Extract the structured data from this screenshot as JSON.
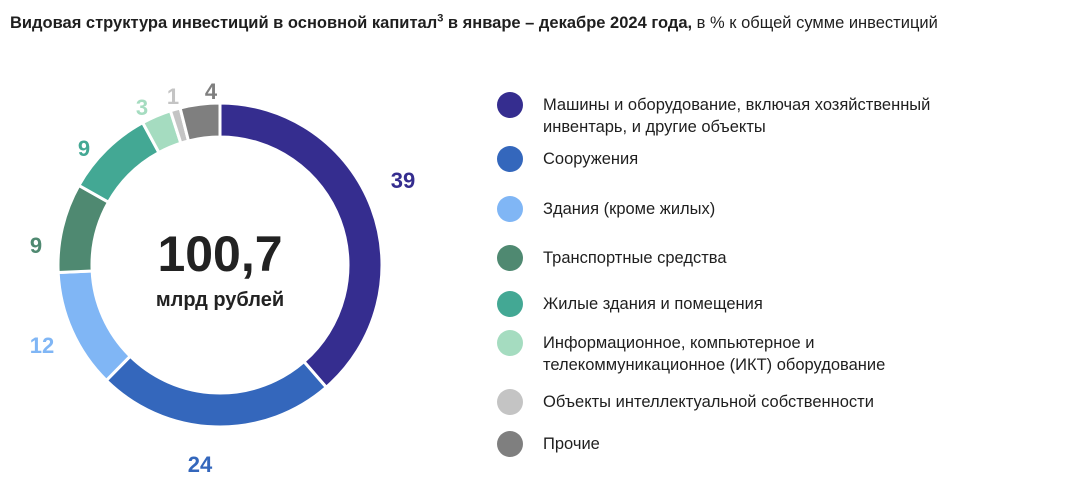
{
  "title": {
    "bold_part": "Видовая структура инвестиций в основной капитал",
    "superscript": "3",
    "bold_part_2": " в январе – декабре 2024 года,",
    "normal_part": " в % к общей сумме инвестиций"
  },
  "center": {
    "value": "100,7",
    "unit": "млрд рублей"
  },
  "chart_data": {
    "type": "pie",
    "title": "Видовая структура инвестиций в основной капитал в январе – декабре 2024 года, в % к общей сумме инвестиций",
    "total_label": "100,7 млрд рублей",
    "categories": [
      "Машины и оборудование, включая хозяйственный инвентарь, и другие объекты",
      "Сооружения",
      "Здания (кроме жилых)",
      "Транспортные средства",
      "Жилые здания и помещения",
      "Информационное, компьютерное и телекоммуникационное (ИКТ) оборудование",
      "Объекты интеллектуальной собственности",
      "Прочие"
    ],
    "values": [
      39,
      24,
      12,
      9,
      9,
      3,
      1,
      4
    ],
    "colors": [
      "#352d8f",
      "#3467bc",
      "#80b6f5",
      "#4f8971",
      "#43a894",
      "#a5dcc0",
      "#c4c4c4",
      "#7f7f7f"
    ],
    "label_colors": [
      "#352d8f",
      "#3467bc",
      "#80b6f5",
      "#4f8971",
      "#43a894",
      "#a5dcc0",
      "#c4c4c4",
      "#7f7f7f"
    ],
    "donut": true,
    "legend_position": "right"
  },
  "legend": [
    {
      "line1": "Машины и оборудование, включая хозяйственный",
      "line2": "инвентарь, и другие объекты"
    },
    {
      "line1": "Сооружения",
      "line2": ""
    },
    {
      "line1": "Здания (кроме жилых)",
      "line2": ""
    },
    {
      "line1": "Транспортные средства",
      "line2": ""
    },
    {
      "line1": "Жилые здания и помещения",
      "line2": ""
    },
    {
      "line1": "Информационное, компьютерное и",
      "line2": "телекоммуникационное (ИКТ) оборудование"
    },
    {
      "line1": "Объекты интеллектуальной собственности",
      "line2": ""
    },
    {
      "line1": "Прочие",
      "line2": ""
    }
  ]
}
